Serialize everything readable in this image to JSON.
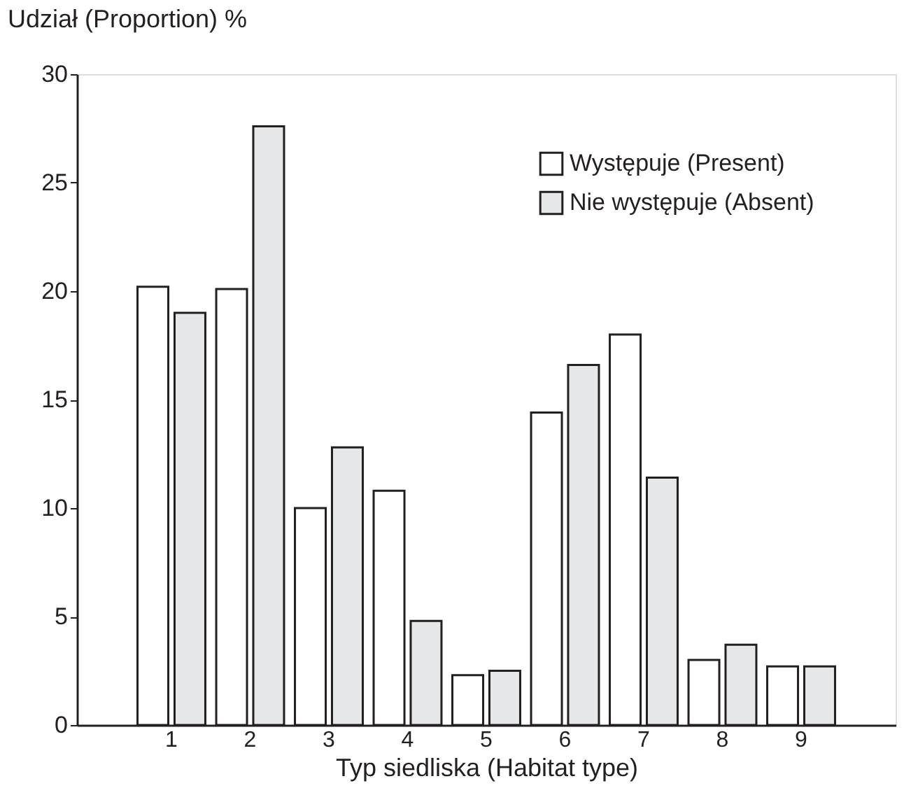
{
  "chart_data": {
    "type": "bar",
    "xlabel": "Typ siedliska (Habitat type)",
    "ylabel": "Udział  (Proportion) %",
    "categories": [
      "1",
      "2",
      "3",
      "4",
      "5",
      "6",
      "7",
      "8",
      "9"
    ],
    "series": [
      {
        "name": "Występuje (Present)",
        "color": "#ffffff",
        "values": [
          20.2,
          20.1,
          10.0,
          10.8,
          2.3,
          14.4,
          18.0,
          3.0,
          2.7
        ]
      },
      {
        "name": "Nie występuje (Absent)",
        "color": "#e6e7e8",
        "values": [
          19.0,
          27.6,
          12.8,
          4.8,
          2.5,
          16.6,
          11.4,
          3.7,
          2.7
        ]
      }
    ],
    "ylim": [
      0,
      30
    ],
    "yticks": [
      0,
      5,
      10,
      15,
      20,
      25,
      30
    ],
    "grid": false,
    "legend": "top right"
  }
}
